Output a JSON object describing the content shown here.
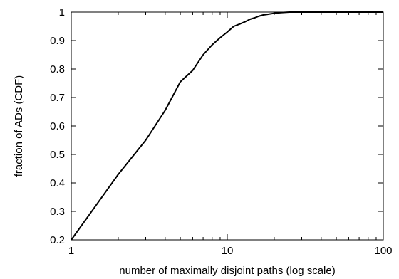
{
  "chart_data": {
    "type": "line",
    "title": "",
    "xlabel": "number of maximally disjoint paths (log scale)",
    "ylabel": "fraction  of ADs (CDF)",
    "x_scale": "log",
    "xlim": [
      1,
      100
    ],
    "ylim": [
      0.2,
      1.0
    ],
    "x_ticks": [
      1,
      10,
      100
    ],
    "x_tick_labels": [
      "1",
      "10",
      "100"
    ],
    "y_ticks": [
      0.2,
      0.3,
      0.4,
      0.5,
      0.6,
      0.7,
      0.8,
      0.9,
      1.0
    ],
    "y_tick_labels": [
      "0.2",
      "0.3",
      "0.4",
      "0.5",
      "0.6",
      "0.7",
      "0.8",
      "0.9",
      "1"
    ],
    "grid": false,
    "legend": "none",
    "series": [
      {
        "color": "#000000",
        "x": [
          1,
          2,
          3,
          4,
          5,
          6,
          7,
          8,
          9,
          10,
          11,
          12,
          13,
          14,
          15,
          16,
          17,
          18,
          19,
          20,
          22,
          25,
          30,
          40,
          50,
          100
        ],
        "y": [
          0.2,
          0.43,
          0.55,
          0.655,
          0.755,
          0.795,
          0.85,
          0.885,
          0.91,
          0.93,
          0.95,
          0.958,
          0.966,
          0.975,
          0.98,
          0.986,
          0.99,
          0.992,
          0.994,
          0.996,
          0.998,
          1.0,
          1.0,
          1.0,
          1.0,
          1.0
        ]
      }
    ]
  }
}
